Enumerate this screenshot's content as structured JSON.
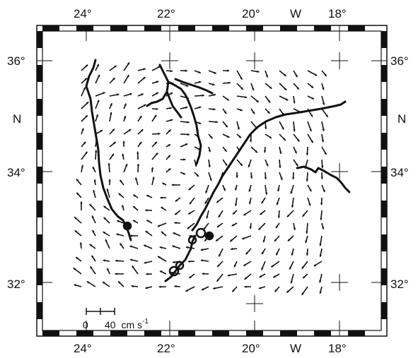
{
  "map": {
    "lon_ticks": [
      "24°",
      "22°",
      "20°",
      "18°"
    ],
    "hemisphere_lon": "W",
    "lat_ticks": [
      "36°",
      "34°",
      "32°"
    ],
    "hemisphere_lat": "N",
    "scale_bar": {
      "zero": "0",
      "value": "40",
      "units": "cm s",
      "exp": "-1"
    },
    "colors": {
      "ink": "#111111",
      "paper": "#ffffff"
    }
  }
}
